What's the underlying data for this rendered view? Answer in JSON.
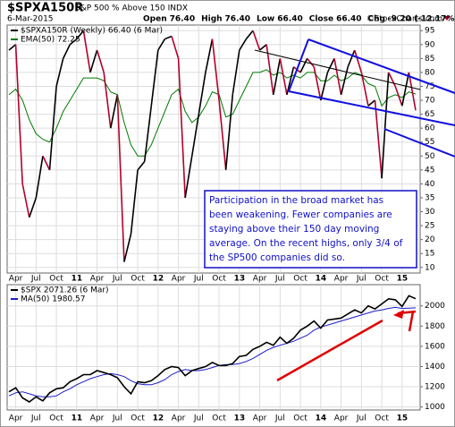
{
  "header": {
    "title": "$SPXA150R",
    "subtitle": "S&P 500 % Above 150 INDX",
    "date": "6-Mar-2015",
    "copyright": "©StockCharts.com",
    "quote": [
      {
        "label": "Open",
        "value": "76.40"
      },
      {
        "label": "High",
        "value": "76.40"
      },
      {
        "label": "Low",
        "value": "66.40"
      },
      {
        "label": "Close",
        "value": "66.40"
      },
      {
        "label": "Chg",
        "value": "-9.20 (-12.17%)"
      }
    ]
  },
  "chart_data": [
    {
      "type": "line",
      "categories": [
        null,
        "Apr",
        null,
        null,
        "Jul",
        null,
        null,
        "Oct",
        null,
        null,
        "11",
        null,
        null,
        "Apr",
        null,
        null,
        "Jul",
        null,
        null,
        "Oct",
        null,
        null,
        "12",
        null,
        null,
        "Apr",
        null,
        null,
        "Jul",
        null,
        null,
        "Oct",
        null,
        null,
        "13",
        null,
        null,
        "Apr",
        null,
        null,
        "Jul",
        null,
        null,
        "Oct",
        null,
        null,
        "14",
        null,
        null,
        "Apr",
        null,
        null,
        "Jul",
        null,
        null,
        "Oct",
        null,
        null,
        "15",
        null,
        null
      ],
      "series": [
        {
          "name": "$SPXA150R (Weekly) 66.40 (6 Mar)",
          "up_color": "#000000",
          "down_color": "#b3002d",
          "values": [
            88,
            90,
            40,
            28,
            35,
            50,
            45,
            75,
            85,
            90,
            92,
            95,
            80,
            88,
            80,
            60,
            72,
            12,
            22,
            45,
            48,
            68,
            88,
            92,
            93,
            85,
            35,
            50,
            65,
            80,
            92,
            70,
            45,
            72,
            88,
            92,
            95,
            88,
            90,
            72,
            85,
            72,
            82,
            80,
            85,
            82,
            70,
            80,
            85,
            72,
            82,
            88,
            80,
            68,
            70,
            42,
            80,
            75,
            68,
            80,
            66.4
          ]
        },
        {
          "name": "EMA(50) 72.25",
          "color": "#007a00",
          "values": [
            72,
            74,
            70,
            63,
            58,
            56,
            55,
            60,
            66,
            70,
            74,
            78,
            78,
            78,
            77,
            73,
            72,
            62,
            54,
            50,
            50,
            54,
            60,
            66,
            72,
            74,
            66,
            62,
            64,
            68,
            73,
            72,
            64,
            65,
            70,
            75,
            80,
            80,
            81,
            79,
            80,
            78,
            79,
            78,
            80,
            80,
            77,
            77,
            79,
            77,
            78,
            80,
            79,
            76,
            75,
            68,
            71,
            72,
            71,
            73,
            72.25
          ]
        }
      ],
      "ylim": [
        8,
        97
      ],
      "yticks": [
        10,
        15,
        20,
        25,
        30,
        35,
        40,
        45,
        50,
        55,
        60,
        65,
        70,
        75,
        80,
        85,
        90,
        95
      ],
      "grid": true,
      "annotation": [
        "Participation in the broad market has",
        "been weakening. Fewer companies are",
        "staying above their 150 day moving",
        "average. On the recent highs, only 3/4 of",
        "the SP500 companies did so."
      ]
    },
    {
      "type": "line",
      "categories": [
        null,
        "Apr",
        null,
        null,
        "Jul",
        null,
        null,
        "Oct",
        null,
        null,
        "11",
        null,
        null,
        "Apr",
        null,
        null,
        "Jul",
        null,
        null,
        "Oct",
        null,
        null,
        "12",
        null,
        null,
        "Apr",
        null,
        null,
        "Jul",
        null,
        null,
        "Oct",
        null,
        null,
        "13",
        null,
        null,
        "Apr",
        null,
        null,
        "Jul",
        null,
        null,
        "Oct",
        null,
        null,
        "14",
        null,
        null,
        "Apr",
        null,
        null,
        "Jul",
        null,
        null,
        "Oct",
        null,
        null,
        "15",
        null,
        null
      ],
      "series": [
        {
          "name": "$SPX 2071.26 (6 Mar)",
          "color": "#000000",
          "values": [
            1150,
            1190,
            1090,
            1050,
            1100,
            1060,
            1140,
            1180,
            1190,
            1250,
            1280,
            1320,
            1320,
            1360,
            1340,
            1320,
            1290,
            1200,
            1130,
            1250,
            1240,
            1260,
            1310,
            1370,
            1400,
            1390,
            1310,
            1360,
            1380,
            1400,
            1440,
            1410,
            1410,
            1430,
            1500,
            1510,
            1570,
            1600,
            1640,
            1610,
            1690,
            1630,
            1680,
            1760,
            1800,
            1850,
            1780,
            1860,
            1870,
            1880,
            1920,
            1960,
            1930,
            2000,
            1970,
            2020,
            2070,
            2060,
            1995,
            2100,
            2071.26
          ]
        },
        {
          "name": "MA(50) 1980.57",
          "color": "#1a1acd",
          "values": [
            1110,
            1140,
            1150,
            1130,
            1110,
            1100,
            1100,
            1110,
            1150,
            1180,
            1220,
            1250,
            1280,
            1300,
            1320,
            1330,
            1320,
            1300,
            1260,
            1230,
            1220,
            1220,
            1240,
            1270,
            1320,
            1350,
            1370,
            1360,
            1360,
            1370,
            1390,
            1410,
            1420,
            1420,
            1430,
            1450,
            1480,
            1520,
            1560,
            1590,
            1610,
            1630,
            1650,
            1680,
            1710,
            1760,
            1790,
            1810,
            1830,
            1850,
            1870,
            1890,
            1910,
            1930,
            1950,
            1960,
            1975,
            1985,
            1975,
            1978,
            1980.57
          ]
        }
      ],
      "ylim": [
        970,
        2210
      ],
      "yticks": [
        1000,
        1200,
        1400,
        1600,
        1800,
        2000
      ],
      "grid": true
    }
  ]
}
